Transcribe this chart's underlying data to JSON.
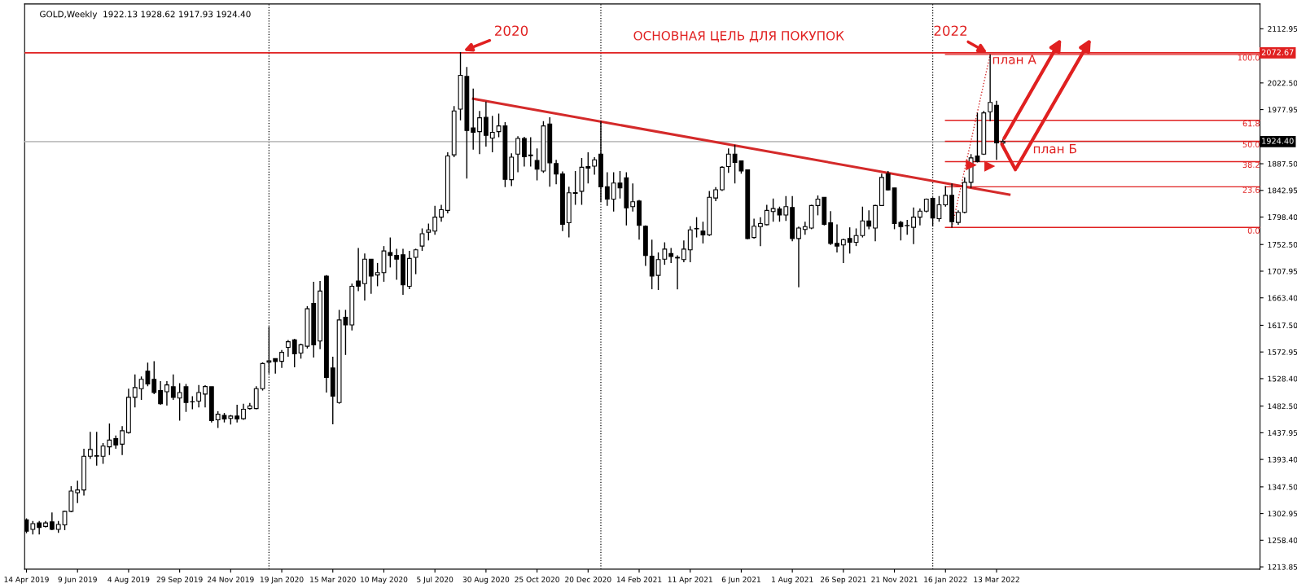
{
  "chart_data": {
    "type": "candlestick",
    "title": "GOLD,Weekly  1922.13 1928.62 1917.93 1924.40",
    "x": [
      "2019-04-14",
      "2019-04-21",
      "2019-04-28",
      "2019-05-05",
      "2019-05-12",
      "2019-05-19",
      "2019-05-26",
      "2019-06-02",
      "2019-06-09",
      "2019-06-16",
      "2019-06-23",
      "2019-06-30",
      "2019-07-07",
      "2019-07-14",
      "2019-07-21",
      "2019-07-28",
      "2019-08-04",
      "2019-08-11",
      "2019-08-18",
      "2019-08-25",
      "2019-09-01",
      "2019-09-08",
      "2019-09-15",
      "2019-09-22",
      "2019-09-29",
      "2019-10-06",
      "2019-10-13",
      "2019-10-20",
      "2019-10-27",
      "2019-11-03",
      "2019-11-10",
      "2019-11-17",
      "2019-11-24",
      "2019-12-01",
      "2019-12-08",
      "2019-12-15",
      "2019-12-22",
      "2019-12-29",
      "2020-01-05",
      "2020-01-12",
      "2020-01-19",
      "2020-01-26",
      "2020-02-02",
      "2020-02-09",
      "2020-02-16",
      "2020-02-23",
      "2020-03-01",
      "2020-03-08",
      "2020-03-15",
      "2020-03-22",
      "2020-03-29",
      "2020-04-05",
      "2020-04-12",
      "2020-04-19",
      "2020-04-26",
      "2020-05-03",
      "2020-05-10",
      "2020-05-17",
      "2020-05-24",
      "2020-05-31",
      "2020-06-07",
      "2020-06-14",
      "2020-06-21",
      "2020-06-28",
      "2020-07-05",
      "2020-07-12",
      "2020-07-19",
      "2020-07-26",
      "2020-08-02",
      "2020-08-09",
      "2020-08-16",
      "2020-08-23",
      "2020-08-30",
      "2020-09-06",
      "2020-09-13",
      "2020-09-20",
      "2020-09-27",
      "2020-10-04",
      "2020-10-11",
      "2020-10-18",
      "2020-10-25",
      "2020-11-01",
      "2020-11-08",
      "2020-11-15",
      "2020-11-22",
      "2020-11-29",
      "2020-12-06",
      "2020-12-13",
      "2020-12-20",
      "2020-12-27",
      "2021-01-03",
      "2021-01-10",
      "2021-01-17",
      "2021-01-24",
      "2021-01-31",
      "2021-02-07",
      "2021-02-14",
      "2021-02-21",
      "2021-02-28",
      "2021-03-07",
      "2021-03-14",
      "2021-03-21",
      "2021-03-28",
      "2021-04-04",
      "2021-04-11",
      "2021-04-18",
      "2021-04-25",
      "2021-05-02",
      "2021-05-09",
      "2021-05-16",
      "2021-05-23",
      "2021-05-30",
      "2021-06-06",
      "2021-06-13",
      "2021-06-20",
      "2021-06-27",
      "2021-07-04",
      "2021-07-11",
      "2021-07-18",
      "2021-07-25",
      "2021-08-01",
      "2021-08-08",
      "2021-08-15",
      "2021-08-22",
      "2021-08-29",
      "2021-09-05",
      "2021-09-12",
      "2021-09-19",
      "2021-09-26",
      "2021-10-03",
      "2021-10-10",
      "2021-10-17",
      "2021-10-24",
      "2021-10-31",
      "2021-11-07",
      "2021-11-14",
      "2021-11-21",
      "2021-11-28",
      "2021-12-05",
      "2021-12-12",
      "2021-12-19",
      "2021-12-26",
      "2022-01-02",
      "2022-01-09",
      "2022-01-16",
      "2022-01-23",
      "2022-01-30",
      "2022-02-06",
      "2022-02-13",
      "2022-02-20",
      "2022-02-27",
      "2022-03-06",
      "2022-03-13",
      "2022-03-20"
    ],
    "ohlc": [
      [
        1292.3,
        1295,
        1270,
        1273.4
      ],
      [
        1276.6,
        1290.4,
        1267.9,
        1286.0
      ],
      [
        1287.2,
        1290.4,
        1268,
        1279.7
      ],
      [
        1281.5,
        1290.4,
        1279.7,
        1287.2
      ],
      [
        1289,
        1304.7,
        1275.3,
        1276.6
      ],
      [
        1276.6,
        1290.4,
        1270.9,
        1284.7
      ],
      [
        1284.1,
        1307.9,
        1275.3,
        1306.6
      ],
      [
        1306.6,
        1348.6,
        1305,
        1340.5
      ],
      [
        1337.8,
        1358,
        1320.5,
        1342.3
      ],
      [
        1342.3,
        1411.3,
        1333,
        1398.7
      ],
      [
        1398.7,
        1439.5,
        1394.4,
        1410
      ],
      [
        1398.7,
        1439.5,
        1383.1,
        1399.5
      ],
      [
        1398.7,
        1420.7,
        1386.2,
        1415.7
      ],
      [
        1414.5,
        1453.3,
        1400.6,
        1425.7
      ],
      [
        1428.3,
        1433.3,
        1411.3,
        1417.6
      ],
      [
        1418.9,
        1448.9,
        1400.6,
        1441.4
      ],
      [
        1438.3,
        1511.6,
        1436.4,
        1497.2
      ],
      [
        1497.2,
        1535.5,
        1480.3,
        1513.5
      ],
      [
        1511.6,
        1532.2,
        1492.8,
        1527.2
      ],
      [
        1540.8,
        1555.3,
        1515.8,
        1519.6
      ],
      [
        1527.2,
        1557.4,
        1502.3,
        1505.2
      ],
      [
        1508.4,
        1524.1,
        1484.7,
        1486.4
      ],
      [
        1506.6,
        1524.1,
        1483.3,
        1517.9
      ],
      [
        1514.8,
        1535.5,
        1492.8,
        1497.2
      ],
      [
        1495.9,
        1520.9,
        1458.3,
        1505.2
      ],
      [
        1514.8,
        1519.6,
        1472.8,
        1488.5
      ],
      [
        1489.6,
        1499.1,
        1477.3,
        1489.9
      ],
      [
        1490.9,
        1517.9,
        1480.3,
        1505.2
      ],
      [
        1502.6,
        1517.4,
        1480.3,
        1515.2
      ],
      [
        1514.8,
        1514.8,
        1455.2,
        1458.3
      ],
      [
        1459.6,
        1474,
        1446,
        1468.9
      ],
      [
        1467.1,
        1471,
        1455.2,
        1460.9
      ],
      [
        1462,
        1467.7,
        1451.7,
        1465.8
      ],
      [
        1465.8,
        1484.7,
        1455.2,
        1460.9
      ],
      [
        1461.5,
        1486.5,
        1459.6,
        1477.3
      ],
      [
        1478.4,
        1487.8,
        1476.7,
        1482.8
      ],
      [
        1478.4,
        1515.8,
        1477.1,
        1511.6
      ],
      [
        1511.6,
        1555.5,
        1508.5,
        1553.6
      ],
      [
        1556,
        1615.1,
        1536.8,
        1558
      ],
      [
        1561.8,
        1561.8,
        1536.8,
        1556.8
      ],
      [
        1557.4,
        1576.2,
        1546.2,
        1572.4
      ],
      [
        1580.6,
        1593.1,
        1565,
        1590
      ],
      [
        1593.1,
        1595,
        1547.4,
        1569.9
      ],
      [
        1571.2,
        1586.9,
        1561.8,
        1585
      ],
      [
        1582.5,
        1649.6,
        1578.7,
        1645.2
      ],
      [
        1654,
        1690.3,
        1563.7,
        1585
      ],
      [
        1591.3,
        1691.6,
        1577.5,
        1674.7
      ],
      [
        1699.7,
        1701.6,
        1505.2,
        1530.5
      ],
      [
        1546.2,
        1564.9,
        1452.1,
        1499.1
      ],
      [
        1488.4,
        1643.3,
        1486.5,
        1626.4
      ],
      [
        1630.8,
        1643.3,
        1568,
        1618.2
      ],
      [
        1618.2,
        1687.2,
        1608.8,
        1682.8
      ],
      [
        1691.6,
        1746.8,
        1674.7,
        1682.8
      ],
      [
        1687.2,
        1737.4,
        1659,
        1728
      ],
      [
        1728,
        1728,
        1670.3,
        1699.7
      ],
      [
        1701.6,
        1721.7,
        1682.8,
        1705.6
      ],
      [
        1705.6,
        1749.9,
        1690.3,
        1741.8
      ],
      [
        1739.3,
        1764.3,
        1714.2,
        1734.3
      ],
      [
        1734.3,
        1745.5,
        1693.5,
        1728
      ],
      [
        1735.5,
        1745.5,
        1668.4,
        1685.3
      ],
      [
        1682.8,
        1741.8,
        1678,
        1729.2
      ],
      [
        1731.1,
        1745.5,
        1702.9,
        1743.6
      ],
      [
        1749.9,
        1779.4,
        1741.8,
        1770.6
      ],
      [
        1773.1,
        1787.5,
        1759.3,
        1776.9
      ],
      [
        1775,
        1817,
        1768.7,
        1798.2
      ],
      [
        1798.2,
        1818.9,
        1790.6,
        1810.7
      ],
      [
        1809.5,
        1906.7,
        1804.5,
        1900.4
      ],
      [
        1902.3,
        1983.8,
        1898.5,
        1975.6
      ],
      [
        1978.8,
        2074.1,
        1960,
        2035.2
      ],
      [
        2033.3,
        2049,
        1862.8,
        1943
      ],
      [
        1947.4,
        2013.2,
        1911,
        1939.9
      ],
      [
        1941.1,
        1975.6,
        1903.5,
        1964.3
      ],
      [
        1964.9,
        1991.3,
        1916,
        1934.8
      ],
      [
        1930.5,
        1967.5,
        1906.7,
        1939.9
      ],
      [
        1941.1,
        1971.2,
        1931.7,
        1950.6
      ],
      [
        1950.6,
        1956.8,
        1848.4,
        1861.5
      ],
      [
        1860.9,
        1904.8,
        1850.2,
        1898.5
      ],
      [
        1903.5,
        1933.6,
        1873.4,
        1929.8
      ],
      [
        1929.8,
        1932.4,
        1882.8,
        1899.1
      ],
      [
        1901,
        1931.7,
        1882.8,
        1902
      ],
      [
        1892.9,
        1912.9,
        1859.6,
        1878.4
      ],
      [
        1875.3,
        1958.7,
        1872.2,
        1950.6
      ],
      [
        1953.7,
        1965,
        1849,
        1889.1
      ],
      [
        1887.8,
        1894.1,
        1853.3,
        1870.3
      ],
      [
        1870.3,
        1874.7,
        1774.9,
        1786.3
      ],
      [
        1788.8,
        1849,
        1764.3,
        1838.9
      ],
      [
        1838,
        1875.3,
        1818.9,
        1839.2
      ],
      [
        1841.4,
        1897.2,
        1818.9,
        1881.6
      ],
      [
        1882.8,
        1906.7,
        1854.6,
        1880.3
      ],
      [
        1883.5,
        1898.5,
        1869.1,
        1894.1
      ],
      [
        1903.5,
        1958.7,
        1824,
        1849
      ],
      [
        1849,
        1873.4,
        1817,
        1828.3
      ],
      [
        1828.3,
        1873.4,
        1807.6,
        1855.2
      ],
      [
        1855.2,
        1875.3,
        1829.5,
        1847.1
      ],
      [
        1864,
        1873.4,
        1784.4,
        1813.8
      ],
      [
        1815.7,
        1854.6,
        1807.6,
        1823.9
      ],
      [
        1825.1,
        1827,
        1760.6,
        1784.4
      ],
      [
        1783.1,
        1784.4,
        1716.7,
        1734.3
      ],
      [
        1733,
        1760.6,
        1677.8,
        1699.7
      ],
      [
        1700.9,
        1739.3,
        1676.6,
        1727.4
      ],
      [
        1728,
        1756.2,
        1718.6,
        1744.9
      ],
      [
        1737.4,
        1746.8,
        1721.7,
        1732.4
      ],
      [
        1730,
        1734.3,
        1677.8,
        1731
      ],
      [
        1727.4,
        1759.3,
        1722.9,
        1744.9
      ],
      [
        1743.6,
        1783.1,
        1722.9,
        1776.9
      ],
      [
        1778.7,
        1798.2,
        1764.3,
        1779.4
      ],
      [
        1775,
        1790.6,
        1754.3,
        1768.7
      ],
      [
        1768.7,
        1842.1,
        1766.8,
        1831.4
      ],
      [
        1830.2,
        1848.4,
        1825.1,
        1844
      ],
      [
        1844,
        1883.5,
        1842.1,
        1881.6
      ],
      [
        1882.8,
        1912.9,
        1872.2,
        1903.5
      ],
      [
        1903.5,
        1919.2,
        1854.6,
        1889.7
      ],
      [
        1892.2,
        1892.2,
        1870.9,
        1875.3
      ],
      [
        1877.2,
        1877.2,
        1761.2,
        1762.5
      ],
      [
        1764.3,
        1795.7,
        1762.5,
        1783.1
      ],
      [
        1782.5,
        1798.2,
        1749.9,
        1787.5
      ],
      [
        1785.6,
        1818.9,
        1784.4,
        1809.5
      ],
      [
        1807.6,
        1829.5,
        1790.6,
        1812.6
      ],
      [
        1812,
        1815.7,
        1790.6,
        1801.9
      ],
      [
        1801.9,
        1833.3,
        1791.9,
        1815.7
      ],
      [
        1814.5,
        1833.3,
        1758.1,
        1762.5
      ],
      [
        1762.5,
        1782.5,
        1680.9,
        1780
      ],
      [
        1777.7,
        1790.6,
        1768.7,
        1782.5
      ],
      [
        1780,
        1818.9,
        1778.1,
        1817.6
      ],
      [
        1817.6,
        1834.6,
        1801.3,
        1828.3
      ],
      [
        1831.4,
        1831.4,
        1784.4,
        1786.3
      ],
      [
        1788.8,
        1808.2,
        1751.8,
        1754.3
      ],
      [
        1754.3,
        1786.3,
        1739.3,
        1749.9
      ],
      [
        1751.8,
        1762.5,
        1721.7,
        1760.6
      ],
      [
        1762.5,
        1781.2,
        1737.4,
        1756.2
      ],
      [
        1756.2,
        1779.4,
        1749.9,
        1767.5
      ],
      [
        1767.5,
        1815.7,
        1764.3,
        1792
      ],
      [
        1792,
        1809.5,
        1778.1,
        1783.1
      ],
      [
        1780,
        1818.9,
        1758.1,
        1817.6
      ],
      [
        1817.6,
        1870.9,
        1816.9,
        1864.6
      ],
      [
        1870.9,
        1875.3,
        1842.7,
        1843.9
      ],
      [
        1847.1,
        1847.1,
        1778.1,
        1787.5
      ],
      [
        1789.4,
        1792,
        1759.3,
        1782.5
      ],
      [
        1784,
        1793.8,
        1768.7,
        1784.4
      ],
      [
        1781.2,
        1814.5,
        1753.1,
        1798.2
      ],
      [
        1798.2,
        1812.6,
        1784.4,
        1808.2
      ],
      [
        1808.2,
        1829.5,
        1806.3,
        1828.3
      ],
      [
        1829.5,
        1831.4,
        1783.1,
        1796.9
      ],
      [
        1795.7,
        1833.3,
        1790.6,
        1818.9
      ],
      [
        1818.9,
        1850.2,
        1815.7,
        1834.6
      ],
      [
        1834.6,
        1854.6,
        1780.6,
        1790.6
      ],
      [
        1789.4,
        1809.5,
        1785.6,
        1806.3
      ],
      [
        1806.3,
        1864.6,
        1804.5,
        1856.5
      ],
      [
        1856.5,
        1903.5,
        1847.1,
        1897.2
      ],
      [
        1900.4,
        1972.5,
        1889.7,
        1890.9
      ],
      [
        1903.5,
        1975.6,
        1902.3,
        1972.5
      ],
      [
        1974.4,
        2070.3,
        1958.7,
        1990
      ],
      [
        1985,
        1992.6,
        1894.1,
        1922.3
      ],
      [
        1922.13,
        1928.62,
        1917.93,
        1924.4
      ]
    ],
    "series": [
      {
        "type": "line",
        "x": [
          "2020-08-16",
          "2022-03-27"
        ],
        "values": [
          1996,
          1836
        ],
        "color": "#d42a2a",
        "line_style": "solid"
      },
      {
        "type": "line",
        "x": [
          "2022-01-23",
          "2022-03-06"
        ],
        "values": [
          1781,
          2070
        ],
        "color": "#d42a2a",
        "line_style": "dotted"
      },
      {
        "type": "line",
        "name": "100.0",
        "x": [
          "2022-01-16",
          "2022-12-27"
        ],
        "values": [
          2070,
          2070
        ],
        "color": "#e02020",
        "line_style": "solid"
      },
      {
        "type": "line",
        "name": "61.8",
        "x": [
          "2022-01-16",
          "2022-12-27"
        ],
        "values": [
          1960,
          1960
        ],
        "color": "#e02020",
        "line_style": "solid"
      },
      {
        "type": "line",
        "name": "50.0",
        "x": [
          "2022-01-16",
          "2022-12-27"
        ],
        "values": [
          1925,
          1925
        ],
        "color": "#e02020",
        "line_style": "solid"
      },
      {
        "type": "line",
        "name": "38.2",
        "x": [
          "2022-01-16",
          "2022-12-27"
        ],
        "values": [
          1891,
          1891
        ],
        "color": "#e02020",
        "line_style": "solid"
      },
      {
        "type": "line",
        "name": "23.6",
        "x": [
          "2022-01-16",
          "2022-12-27"
        ],
        "values": [
          1849,
          1849
        ],
        "color": "#e02020",
        "line_style": "solid"
      },
      {
        "type": "line",
        "name": "0.0",
        "x": [
          "2022-01-16",
          "2022-12-27"
        ],
        "values": [
          1781,
          1781
        ],
        "color": "#e02020",
        "line_style": "solid"
      }
    ],
    "ref_lines": [
      {
        "axis": "y",
        "value": 2072.67,
        "label": "2072.67",
        "color": "#e02020",
        "line_style": "solid"
      },
      {
        "axis": "y",
        "value": 1924.4,
        "label": "1924.40",
        "color": "#c0c0c0",
        "line_style": "solid"
      },
      {
        "axis": "x",
        "value": "2020-01-05",
        "color": "#000000",
        "line_style": "dotted"
      },
      {
        "axis": "x",
        "value": "2021-01-03",
        "color": "#000000",
        "line_style": "dotted"
      },
      {
        "axis": "x",
        "value": "2022-01-02",
        "color": "#000000",
        "line_style": "dotted"
      }
    ],
    "annotations": [
      {
        "text": "2020",
        "x": "2020-08-02",
        "y": 2074.1
      },
      "ОСНОВНАЯ ЦЕЛЬ ДЛЯ ПОКУПОК",
      {
        "text": "2022",
        "x": "2022-03-06",
        "y": 2070.3
      },
      "план А",
      "план Б"
    ],
    "xlim": [
      "2019-04-12",
      "2022-12-27"
    ],
    "xticks": [
      {
        "value": "2019-04-14",
        "label": "14 Apr 2019"
      },
      {
        "value": "2019-06-09",
        "label": "9 Jun 2019"
      },
      {
        "value": "2019-08-04",
        "label": "4 Aug 2019"
      },
      {
        "value": "2019-09-29",
        "label": "29 Sep 2019"
      },
      {
        "value": "2019-11-24",
        "label": "24 Nov 2019"
      },
      {
        "value": "2020-01-19",
        "label": "19 Jan 2020"
      },
      {
        "value": "2020-03-15",
        "label": "15 Mar 2020"
      },
      {
        "value": "2020-05-10",
        "label": "10 May 2020"
      },
      {
        "value": "2020-07-05",
        "label": "5 Jul 2020"
      },
      {
        "value": "2020-08-30",
        "label": "30 Aug 2020"
      },
      {
        "value": "2020-10-25",
        "label": "25 Oct 2020"
      },
      {
        "value": "2020-12-20",
        "label": "20 Dec 2020"
      },
      {
        "value": "2021-02-14",
        "label": "14 Feb 2021"
      },
      {
        "value": "2021-04-11",
        "label": "11 Apr 2021"
      },
      {
        "value": "2021-06-06",
        "label": "6 Jun 2021"
      },
      {
        "value": "2021-08-01",
        "label": "1 Aug 2021"
      },
      {
        "value": "2021-09-26",
        "label": "26 Sep 2021"
      },
      {
        "value": "2021-11-21",
        "label": "21 Nov 2021"
      },
      {
        "value": "2022-01-16",
        "label": "16 Jan 2022"
      },
      {
        "value": "2022-03-13",
        "label": "13 Mar 2022"
      }
    ],
    "ylim": [
      1210.0,
      2154.4
    ],
    "yticks": [
      2112.95,
      {
        "value": 2022.5,
        "label": "2022.50"
      },
      1977.95,
      {
        "value": 1887.5,
        "label": "1887.50"
      },
      1842.95,
      {
        "value": 1798.4,
        "label": "1798.40"
      },
      {
        "value": 1752.5,
        "label": "1752.50"
      },
      1707.95,
      {
        "value": 1663.4,
        "label": "1663.40"
      },
      {
        "value": 1617.5,
        "label": "1617.50"
      },
      1572.95,
      {
        "value": 1528.4,
        "label": "1528.40"
      },
      {
        "value": 1482.5,
        "label": "1482.50"
      },
      1437.95,
      {
        "value": 1393.4,
        "label": "1393.40"
      },
      {
        "value": 1347.5,
        "label": "1347.50"
      },
      1302.95,
      {
        "value": 1258.4,
        "label": "1258.40"
      },
      1213.85
    ]
  }
}
